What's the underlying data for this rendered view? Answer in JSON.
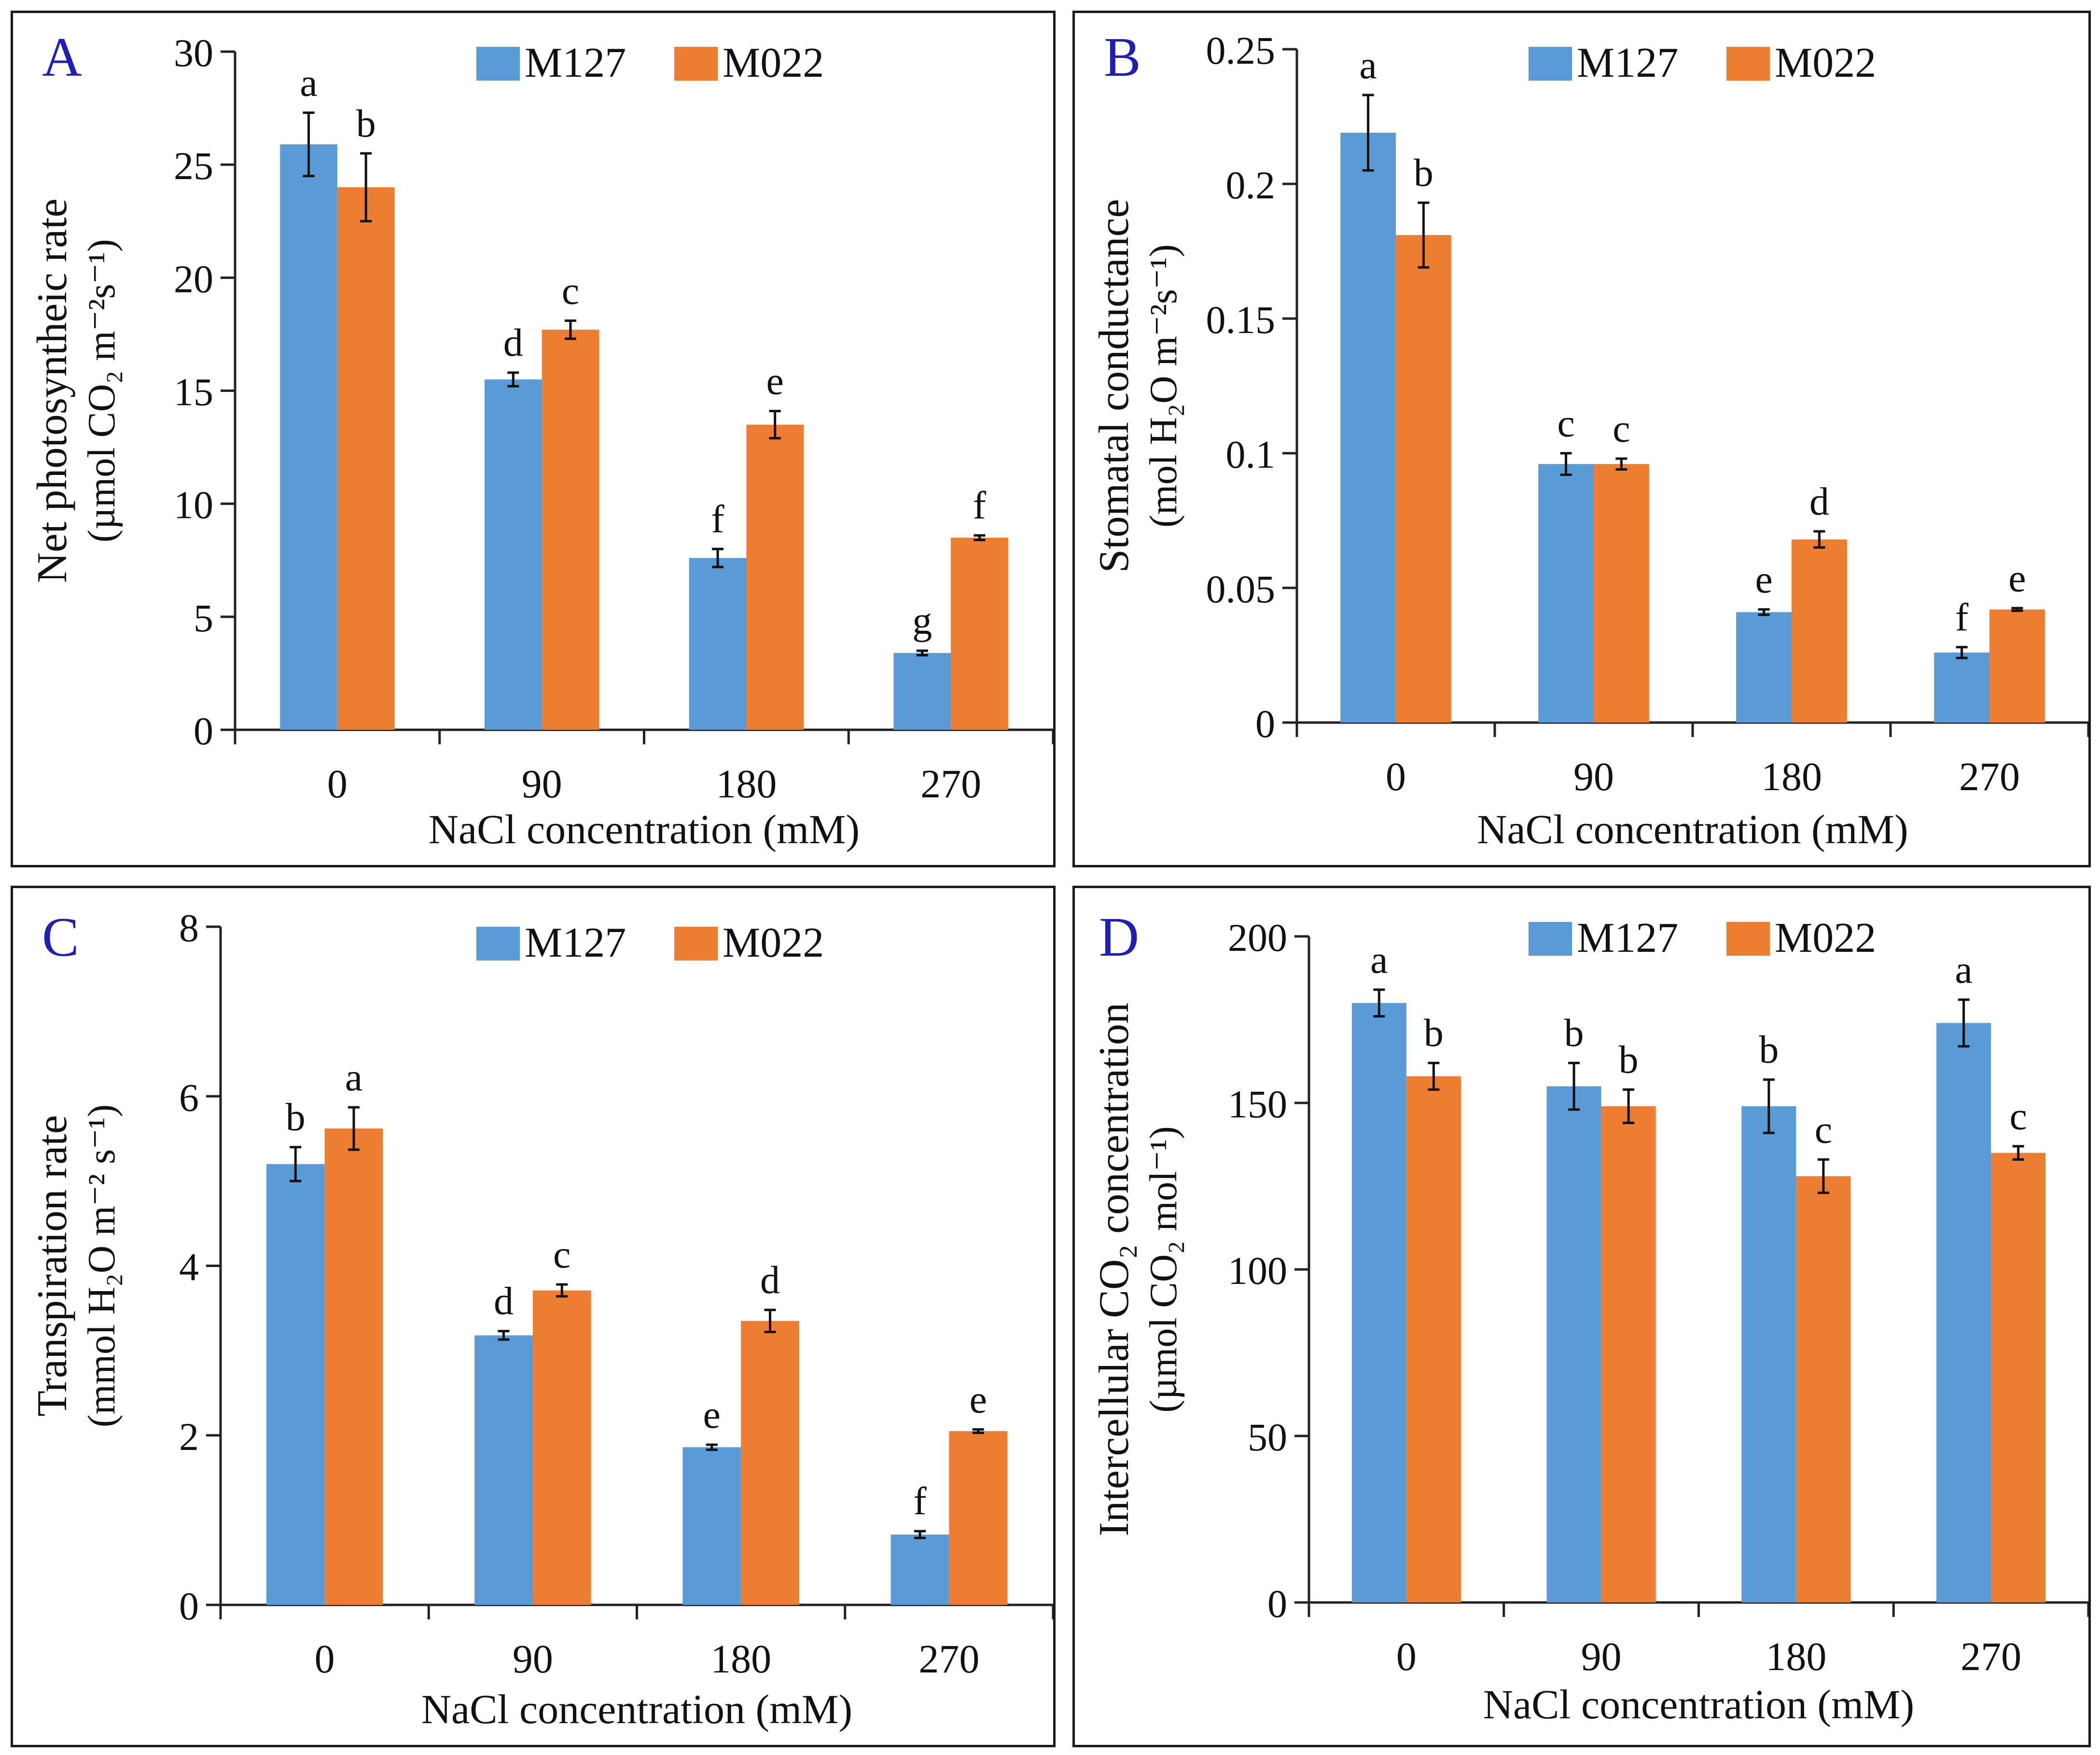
{
  "colors": {
    "M127": "#5b9bd5",
    "M022": "#ed7d31",
    "panel_letter": "#1f1fb4",
    "ink": "#111111"
  },
  "chart_data": [
    {
      "panel": "A",
      "type": "bar",
      "xlabel": "NaCl concentration (mM)",
      "ylabel_line1": "Net photosyntheic rate",
      "ylabel_line2": "(µmol  CO₂ m⁻²s⁻¹)",
      "categories": [
        "0",
        "90",
        "180",
        "270"
      ],
      "ylim": [
        0,
        30
      ],
      "yticks": [
        "0",
        "5",
        "10",
        "15",
        "20",
        "25",
        "30"
      ],
      "ytick_values": [
        0,
        5,
        10,
        15,
        20,
        25,
        30
      ],
      "series": [
        {
          "name": "M127",
          "values": [
            25.9,
            15.5,
            7.6,
            3.4
          ],
          "errors": [
            1.4,
            0.3,
            0.4,
            0.1
          ],
          "letters": [
            "a",
            "d",
            "f",
            "g"
          ]
        },
        {
          "name": "M022",
          "values": [
            24.0,
            17.7,
            13.5,
            8.5
          ],
          "errors": [
            1.5,
            0.4,
            0.6,
            0.1
          ],
          "letters": [
            "b",
            "c",
            "e",
            "f"
          ]
        }
      ]
    },
    {
      "panel": "B",
      "type": "bar",
      "xlabel": "NaCl concentration (mM)",
      "ylabel_line1": "Stomatal conductance",
      "ylabel_line2": "(mol H₂O m⁻²s⁻¹)",
      "categories": [
        "0",
        "90",
        "180",
        "270"
      ],
      "ylim": [
        0,
        0.25
      ],
      "yticks": [
        "0",
        "0.05",
        "0.1",
        "0.15",
        "0.2",
        "0.25"
      ],
      "ytick_values": [
        0,
        0.05,
        0.1,
        0.15,
        0.2,
        0.25
      ],
      "series": [
        {
          "name": "M127",
          "values": [
            0.219,
            0.096,
            0.041,
            0.026
          ],
          "errors": [
            0.014,
            0.004,
            0.001,
            0.002
          ],
          "letters": [
            "a",
            "c",
            "e",
            "f"
          ]
        },
        {
          "name": "M022",
          "values": [
            0.181,
            0.096,
            0.068,
            0.042
          ],
          "errors": [
            0.012,
            0.002,
            0.003,
            0.0005
          ],
          "letters": [
            "b",
            "c",
            "d",
            "e"
          ]
        }
      ]
    },
    {
      "panel": "C",
      "type": "bar",
      "xlabel": "NaCl concentration (mM)",
      "ylabel_line1": "Transpiration rate",
      "ylabel_line2": "(mmol H₂O m⁻² s⁻¹)",
      "categories": [
        "0",
        "90",
        "180",
        "270"
      ],
      "ylim": [
        0,
        8
      ],
      "yticks": [
        "0",
        "2",
        "4",
        "6",
        "8"
      ],
      "ytick_values": [
        0,
        2,
        4,
        6,
        8
      ],
      "series": [
        {
          "name": "M127",
          "values": [
            5.2,
            3.18,
            1.86,
            0.83
          ],
          "errors": [
            0.2,
            0.05,
            0.03,
            0.04
          ],
          "letters": [
            "b",
            "d",
            "e",
            "f"
          ]
        },
        {
          "name": "M022",
          "values": [
            5.62,
            3.71,
            3.35,
            2.05
          ],
          "errors": [
            0.25,
            0.07,
            0.13,
            0.02
          ],
          "letters": [
            "a",
            "c",
            "d",
            "e"
          ]
        }
      ]
    },
    {
      "panel": "D",
      "type": "bar",
      "xlabel": "NaCl concentration (mM)",
      "ylabel_line1": "Intercellular CO₂ concentration",
      "ylabel_line2": "(µmol CO₂ mol⁻¹)",
      "categories": [
        "0",
        "90",
        "180",
        "270"
      ],
      "ylim": [
        0,
        200
      ],
      "yticks": [
        "0",
        "50",
        "100",
        "150",
        "200"
      ],
      "ytick_values": [
        0,
        50,
        100,
        150,
        200
      ],
      "series": [
        {
          "name": "M127",
          "values": [
            180,
            155,
            149,
            174
          ],
          "errors": [
            4,
            7,
            8,
            7
          ],
          "letters": [
            "a",
            "b",
            "b",
            "a"
          ]
        },
        {
          "name": "M022",
          "values": [
            158,
            149,
            128,
            135
          ],
          "errors": [
            4,
            5,
            5,
            2
          ],
          "letters": [
            "b",
            "b",
            "c",
            "c"
          ]
        }
      ]
    }
  ]
}
